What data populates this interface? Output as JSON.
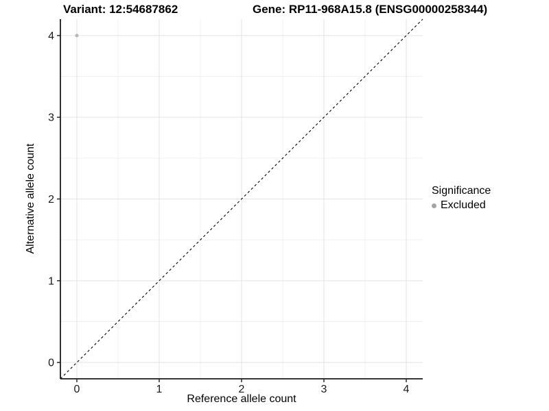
{
  "chart_data": {
    "type": "scatter",
    "titles": {
      "left": "Variant: 12:54687862",
      "right": "Gene: RP11-968A15.8 (ENSG00000258344)"
    },
    "xlabel": "Reference allele count",
    "ylabel": "Alternative allele count",
    "xlim": [
      -0.2,
      4.2
    ],
    "ylim": [
      -0.2,
      4.2
    ],
    "x_ticks": [
      0,
      1,
      2,
      3,
      4
    ],
    "y_ticks": [
      0,
      1,
      2,
      3,
      4
    ],
    "x_minor_ticks": [
      0.5,
      1.5,
      2.5,
      3.5
    ],
    "y_minor_ticks": [
      0.5,
      1.5,
      2.5,
      3.5
    ],
    "grid": true,
    "identity_line": {
      "style": "dashed",
      "x1": -0.2,
      "y1": -0.2,
      "x2": 4.2,
      "y2": 4.2,
      "color": "#000000"
    },
    "series": [
      {
        "name": "Excluded",
        "color": "#b5b5b5",
        "point_radius": 2.5,
        "points": [
          {
            "x": 0,
            "y": 4
          }
        ]
      }
    ],
    "legend": {
      "title": "Significance",
      "position": "right",
      "entries": [
        {
          "label": "Excluded",
          "color": "#a3a3a3"
        }
      ]
    },
    "style": {
      "grid_major_color": "#e3e3e3",
      "grid_minor_color": "#f0f0f0",
      "axis_color": "#1a1a1a",
      "tick_label_color": "#1a1a1a",
      "background": "#ffffff"
    }
  }
}
